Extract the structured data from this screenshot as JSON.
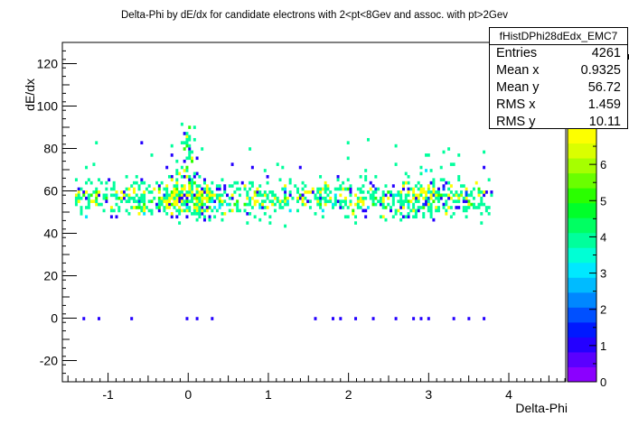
{
  "chart_data": {
    "type": "heatmap",
    "title": "Delta-Phi by dE/dx for candidate electrons with 2<pt<8Gev and assoc. with pt>2Gev",
    "xlabel": "Delta-Phi",
    "ylabel": "dE/dx",
    "xlim": [
      -1.57,
      4.71
    ],
    "ylim": [
      -30,
      130
    ],
    "x_ticks": [
      "-1",
      "0",
      "1",
      "2",
      "3",
      "4"
    ],
    "x_tick_values": [
      -1,
      0,
      1,
      2,
      3,
      4
    ],
    "y_ticks": [
      "-20",
      "0",
      "20",
      "40",
      "60",
      "80",
      "100",
      "120"
    ],
    "y_tick_values": [
      -20,
      0,
      20,
      40,
      60,
      80,
      100,
      120
    ],
    "grid": false,
    "colorbar": {
      "min": 0,
      "max": 7,
      "ticks": [
        "0",
        "1",
        "2",
        "3",
        "4",
        "5",
        "6"
      ],
      "tick_values": [
        0,
        1,
        2,
        3,
        4,
        5,
        6
      ],
      "colors": [
        "#8b00ff",
        "#5a00ff",
        "#2400ff",
        "#0019ff",
        "#0050ff",
        "#0087ff",
        "#00bbff",
        "#00e8ff",
        "#00ffd5",
        "#00ff9c",
        "#00ff62",
        "#00ff2a",
        "#2aff00",
        "#6aff00",
        "#a6ff00",
        "#daff00",
        "#fdff00"
      ]
    },
    "stats_box": {
      "name": "fHistDPhi28dEdx_EMC7",
      "entries": [
        {
          "label": "Entries",
          "value": "4261"
        },
        {
          "label": "Mean x",
          "value": "0.9325"
        },
        {
          "label": "Mean y",
          "value": "56.72"
        },
        {
          "label": "RMS x",
          "value": "1.459"
        },
        {
          "label": "RMS y",
          "value": "10.11"
        }
      ]
    },
    "summary": {
      "entries": 4261,
      "mean_x": 0.9325,
      "mean_y": 56.72,
      "rms_x": 1.459,
      "rms_y": 10.11
    }
  }
}
